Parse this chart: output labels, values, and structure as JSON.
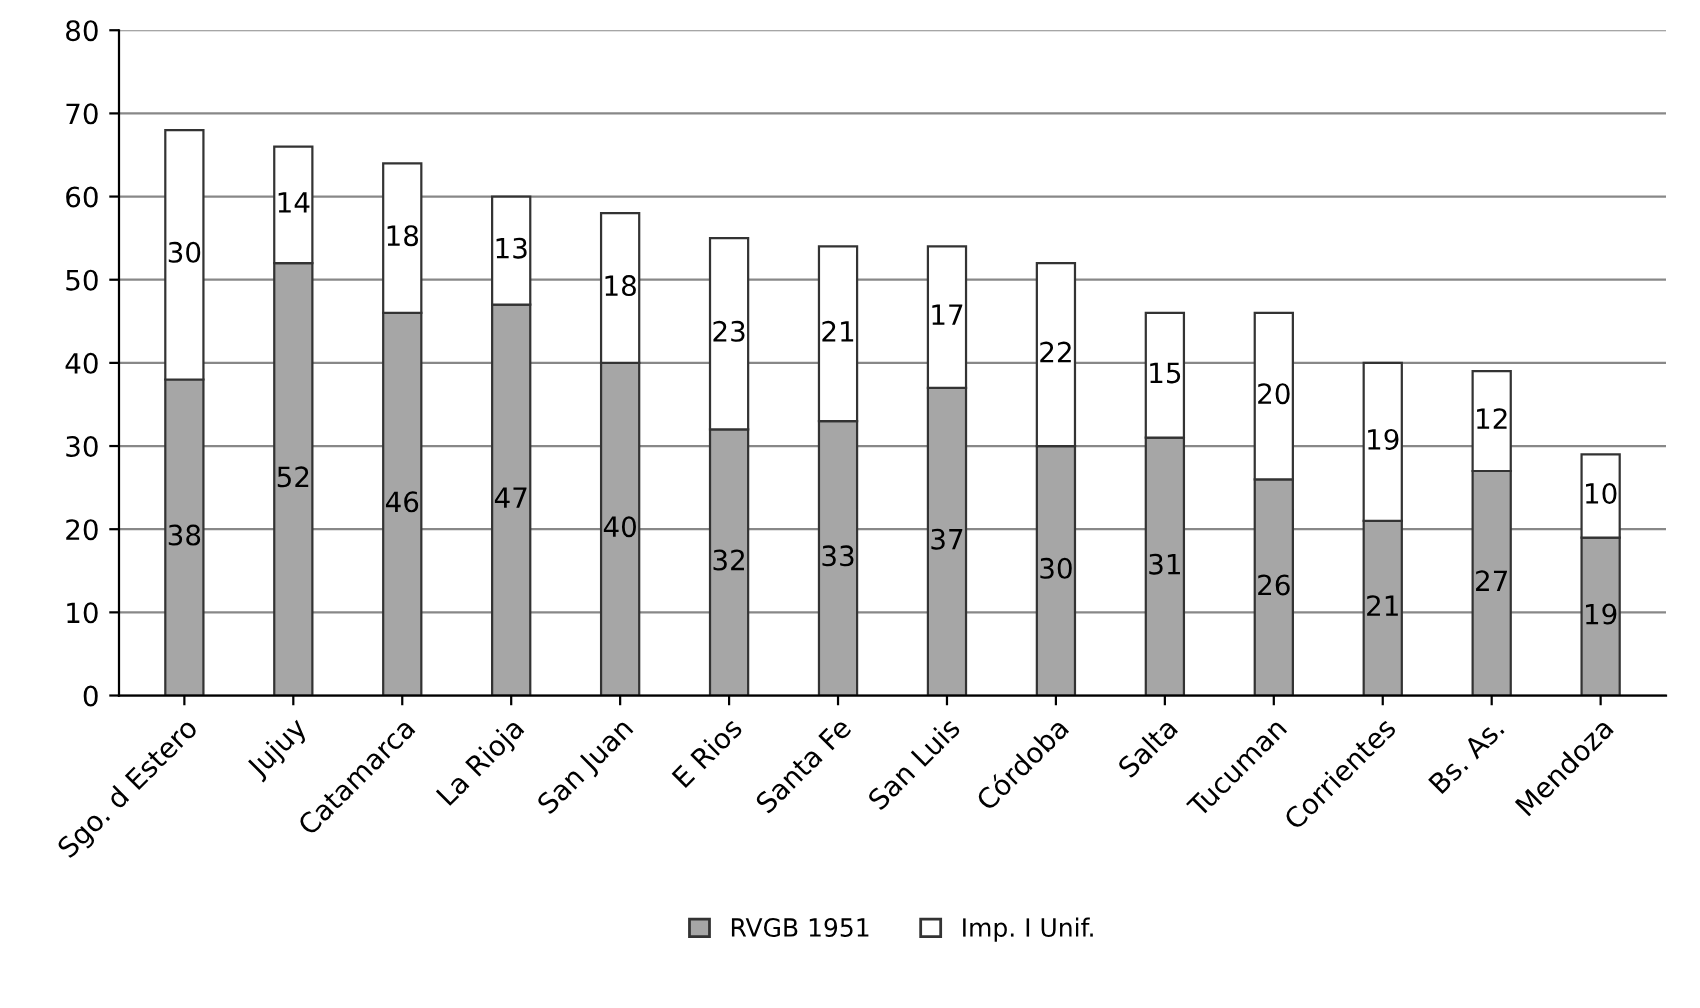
{
  "chart_data": {
    "type": "bar",
    "stacked": true,
    "categories": [
      "Sgo. d Estero",
      "Jujuy",
      "Catamarca",
      "La Rioja",
      "San Juan",
      "E Rios",
      "Santa Fe",
      "San Luis",
      "Córdoba",
      "Salta",
      "Tucuman",
      "Corrientes",
      "Bs. As.",
      "Mendoza"
    ],
    "series": [
      {
        "name": "RVGB 1951",
        "color": "#a6a6a6",
        "values": [
          38,
          52,
          46,
          47,
          40,
          32,
          33,
          37,
          30,
          31,
          26,
          21,
          27,
          19
        ]
      },
      {
        "name": "Imp. I Unif.",
        "color": "#ffffff",
        "values": [
          30,
          14,
          18,
          13,
          18,
          23,
          21,
          17,
          22,
          15,
          20,
          19,
          12,
          10
        ]
      }
    ],
    "ylim": [
      0,
      80
    ],
    "yticks": [
      0,
      10,
      20,
      30,
      40,
      50,
      60,
      70,
      80
    ],
    "grid": "y",
    "legend": "bottom",
    "data_labels": true
  }
}
